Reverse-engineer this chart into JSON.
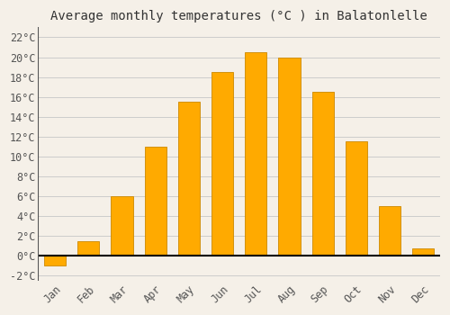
{
  "months": [
    "Jan",
    "Feb",
    "Mar",
    "Apr",
    "May",
    "Jun",
    "Jul",
    "Aug",
    "Sep",
    "Oct",
    "Nov",
    "Dec"
  ],
  "temperatures": [
    -1.0,
    1.5,
    6.0,
    11.0,
    15.5,
    18.5,
    20.5,
    20.0,
    16.5,
    11.5,
    5.0,
    0.7
  ],
  "bar_color": "#FFAA00",
  "bar_edge_color": "#CC8800",
  "title": "Average monthly temperatures (°C ) in Balatonlelle",
  "ylim": [
    -2.5,
    23
  ],
  "yticks": [
    -2,
    0,
    2,
    4,
    6,
    8,
    10,
    12,
    14,
    16,
    18,
    20,
    22
  ],
  "ytick_labels": [
    "-2°C",
    "0°C",
    "2°C",
    "4°C",
    "6°C",
    "8°C",
    "10°C",
    "12°C",
    "14°C",
    "16°C",
    "18°C",
    "20°C",
    "22°C"
  ],
  "background_color": "#F5F0E8",
  "plot_bg_color": "#F5F0E8",
  "grid_color": "#CCCCCC",
  "title_fontsize": 10,
  "tick_fontsize": 8.5,
  "bar_width": 0.65,
  "zero_line_color": "#000000",
  "tick_color": "#555555",
  "spine_color": "#555555"
}
